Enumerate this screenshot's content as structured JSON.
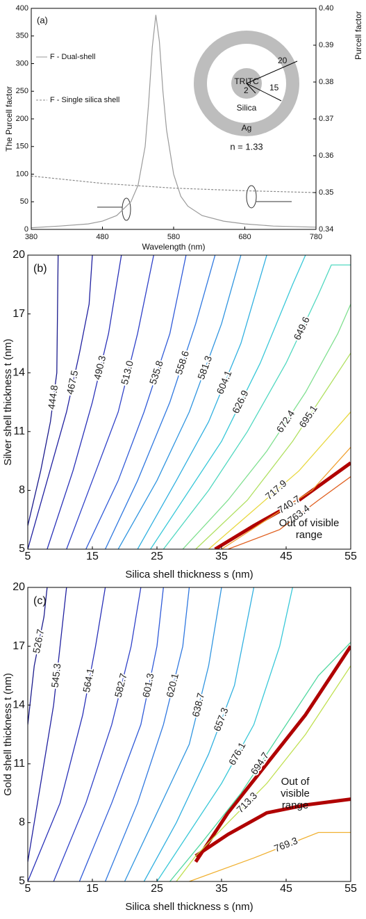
{
  "chart_data": [
    {
      "type": "line",
      "panel": "(a)",
      "xlabel": "Wavelength (nm)",
      "ylabel": "The Purcell factor",
      "y2label": "Purcell factor",
      "xlim": [
        380,
        780
      ],
      "xticks": [
        380,
        480,
        580,
        680,
        780
      ],
      "ylim": [
        0,
        400
      ],
      "yticks": [
        0,
        50,
        100,
        150,
        200,
        250,
        300,
        350,
        400
      ],
      "y2lim": [
        0.34,
        0.4
      ],
      "y2ticks": [
        0.34,
        0.35,
        0.36,
        0.37,
        0.38,
        0.39,
        {
          "value": 0.4,
          "label": "0.40"
        }
      ],
      "series": [
        {
          "name": "F - Dual-shell",
          "color": "#9a9a9a",
          "x": [
            380,
            420,
            460,
            480,
            500,
            520,
            530,
            540,
            545,
            550,
            555,
            560,
            565,
            570,
            580,
            590,
            600,
            620,
            650,
            680,
            720,
            780
          ],
          "values": [
            3,
            6,
            10,
            15,
            25,
            50,
            80,
            150,
            230,
            330,
            388,
            340,
            250,
            180,
            100,
            60,
            42,
            25,
            15,
            10,
            6,
            4
          ]
        },
        {
          "name": "F - Single silica shell",
          "color": "#8a8a8a",
          "dashed": true,
          "axis": "y2",
          "x": [
            380,
            480,
            580,
            680,
            780
          ],
          "values": [
            0.3545,
            0.3525,
            0.3512,
            0.3505,
            0.35
          ]
        }
      ],
      "inset": [
        "TRITC",
        "Silica",
        "Ag",
        "20",
        "15",
        "2",
        "n = 1.33"
      ]
    },
    {
      "type": "contour",
      "panel": "(b)",
      "xlabel": "Silica shell thickness s (nm)",
      "ylabel": "Silver shell thickness t (nm)",
      "xlim": [
        5,
        55
      ],
      "xticks": [
        5,
        15,
        25,
        35,
        45,
        55
      ],
      "ylim": [
        5,
        20
      ],
      "yticks": [
        5,
        8,
        11,
        14,
        17,
        20
      ],
      "series": [
        {
          "name": "444.8",
          "color": "#1a1a8c",
          "x": [
            5,
            7,
            8.5,
            9.5,
            9.7
          ],
          "y": [
            6.2,
            9,
            11.5,
            14,
            20
          ]
        },
        {
          "name": "467.5",
          "color": "#2020a0",
          "x": [
            5,
            8,
            11,
            13,
            14.5,
            15
          ],
          "y": [
            5,
            8.5,
            12,
            15,
            17.5,
            20
          ]
        },
        {
          "name": "490.3",
          "color": "#2830b8",
          "x": [
            8,
            12,
            15,
            17.5,
            19.5
          ],
          "y": [
            5,
            9,
            12.5,
            16,
            20
          ]
        },
        {
          "name": "513.0",
          "color": "#2e40c8",
          "x": [
            11,
            15,
            19,
            22,
            24.5
          ],
          "y": [
            5,
            8.5,
            12,
            16,
            20
          ]
        },
        {
          "name": "535.8",
          "color": "#2f5ad8",
          "x": [
            14,
            19,
            23,
            27,
            29.5
          ],
          "y": [
            5,
            8.5,
            12,
            16,
            20
          ]
        },
        {
          "name": "558.6",
          "color": "#2f78e0",
          "x": [
            17,
            22,
            27,
            31,
            34
          ],
          "y": [
            5,
            8.5,
            12.5,
            16.5,
            20
          ]
        },
        {
          "name": "581.3",
          "color": "#2f95e0",
          "x": [
            19,
            25,
            30,
            35,
            38
          ],
          "y": [
            5,
            8.5,
            12,
            16.5,
            20
          ]
        },
        {
          "name": "604.1",
          "color": "#30b0e0",
          "x": [
            22,
            28,
            33,
            38,
            42
          ],
          "y": [
            5,
            8.5,
            11.5,
            15.5,
            20
          ]
        },
        {
          "name": "626.9",
          "color": "#38c8d8",
          "x": [
            24,
            30,
            35,
            41,
            46,
            48
          ],
          "y": [
            5,
            8,
            10.5,
            14.5,
            18.5,
            20
          ]
        },
        {
          "name": "649.6",
          "color": "#50d8c0",
          "x": [
            26,
            33,
            39,
            45,
            50,
            52,
            55
          ],
          "y": [
            5,
            8,
            11,
            14.5,
            18,
            19.5,
            19.5
          ]
        },
        {
          "name": "672.4",
          "color": "#80e090",
          "x": [
            29,
            36,
            42,
            48,
            53,
            55
          ],
          "y": [
            5,
            7.5,
            10,
            13,
            16,
            17.5
          ]
        },
        {
          "name": "695.1",
          "color": "#b0e060",
          "x": [
            31,
            39,
            46,
            51,
            55
          ],
          "y": [
            5,
            7.5,
            10.5,
            13,
            15
          ]
        },
        {
          "name": "717.9",
          "color": "#e8d840",
          "x": [
            33,
            40,
            47,
            55
          ],
          "y": [
            5,
            7,
            9,
            12
          ]
        },
        {
          "name": "740.7",
          "color": "#f0a030",
          "x": [
            35,
            42,
            49,
            55
          ],
          "y": [
            5,
            6.5,
            8,
            10.2
          ]
        },
        {
          "name": "763.4",
          "color": "#e06020",
          "x": [
            36,
            44,
            50,
            55
          ],
          "y": [
            5,
            6,
            7.5,
            8.7
          ]
        }
      ],
      "boundary": [
        {
          "color": "#b00000",
          "x": [
            34,
            40,
            47,
            55
          ],
          "y": [
            5,
            6.2,
            7.5,
            9.4
          ]
        }
      ],
      "annotation": [
        "Out of visible",
        "range"
      ]
    },
    {
      "type": "contour",
      "panel": "(c)",
      "xlabel": "Silica shell thickness s (nm)",
      "ylabel": "Gold shell thickness t (nm)",
      "xlim": [
        5,
        55
      ],
      "xticks": [
        5,
        15,
        25,
        35,
        45,
        55
      ],
      "ylim": [
        5,
        20
      ],
      "yticks": [
        5,
        8,
        11,
        14,
        17,
        20
      ],
      "series": [
        {
          "name": "526.7",
          "color": "#1a1a8c",
          "x": [
            5,
            6,
            7.5,
            8
          ],
          "y": [
            13,
            16,
            18.5,
            20
          ]
        },
        {
          "name": "545.3",
          "color": "#2020a0",
          "x": [
            5,
            7,
            9,
            10,
            11
          ],
          "y": [
            6,
            10,
            14,
            17,
            20
          ]
        },
        {
          "name": "564.1",
          "color": "#2830b8",
          "x": [
            5,
            10,
            13.5,
            15.5,
            17
          ],
          "y": [
            5,
            9,
            13.5,
            17,
            20
          ]
        },
        {
          "name": "582.7",
          "color": "#2e40c8",
          "x": [
            9,
            14,
            18,
            21,
            22.5
          ],
          "y": [
            5,
            9,
            13,
            17,
            20
          ]
        },
        {
          "name": "601.3",
          "color": "#2f5ad8",
          "x": [
            13,
            18,
            22.5,
            25,
            26
          ],
          "y": [
            5,
            9,
            13,
            17,
            20
          ]
        },
        {
          "name": "620.1",
          "color": "#2f78e0",
          "x": [
            17,
            22,
            26,
            29,
            30
          ],
          "y": [
            5,
            9,
            13,
            17,
            20
          ]
        },
        {
          "name": "638.7",
          "color": "#2f95e0",
          "x": [
            20,
            25,
            30,
            33,
            35
          ],
          "y": [
            5,
            8.5,
            12,
            16,
            20
          ]
        },
        {
          "name": "657.3",
          "color": "#30b0e0",
          "x": [
            23,
            28,
            33,
            37,
            40
          ],
          "y": [
            5,
            8,
            11.5,
            15,
            20
          ]
        },
        {
          "name": "676.1",
          "color": "#38c8d8",
          "x": [
            25,
            30,
            35,
            40,
            44,
            46
          ],
          "y": [
            5,
            7.5,
            10,
            13,
            17,
            20
          ]
        },
        {
          "name": "694.7",
          "color": "#50d8a0",
          "x": [
            27,
            32,
            38,
            44,
            50,
            55
          ],
          "y": [
            5,
            7,
            9.5,
            12.5,
            15.5,
            17.2
          ]
        },
        {
          "name": "713.3",
          "color": "#c0e050",
          "x": [
            28,
            31,
            36,
            42,
            48,
            55
          ],
          "y": [
            5,
            6.3,
            8,
            10,
            12.5,
            16
          ]
        },
        {
          "name": "769.3",
          "color": "#f0b030",
          "x": [
            30,
            40,
            50,
            55
          ],
          "y": [
            5,
            6.2,
            7.5,
            7.5
          ]
        }
      ],
      "boundary": [
        {
          "color": "#b00000",
          "x": [
            31,
            36,
            42,
            48,
            55
          ],
          "y": [
            6,
            8.5,
            11,
            13.5,
            17
          ]
        },
        {
          "color": "#b00000",
          "x": [
            31,
            36,
            42,
            48,
            55
          ],
          "y": [
            6.3,
            7.4,
            8.5,
            8.9,
            9.2
          ]
        }
      ],
      "annotation": [
        "Out of",
        "visible",
        "range"
      ]
    }
  ]
}
